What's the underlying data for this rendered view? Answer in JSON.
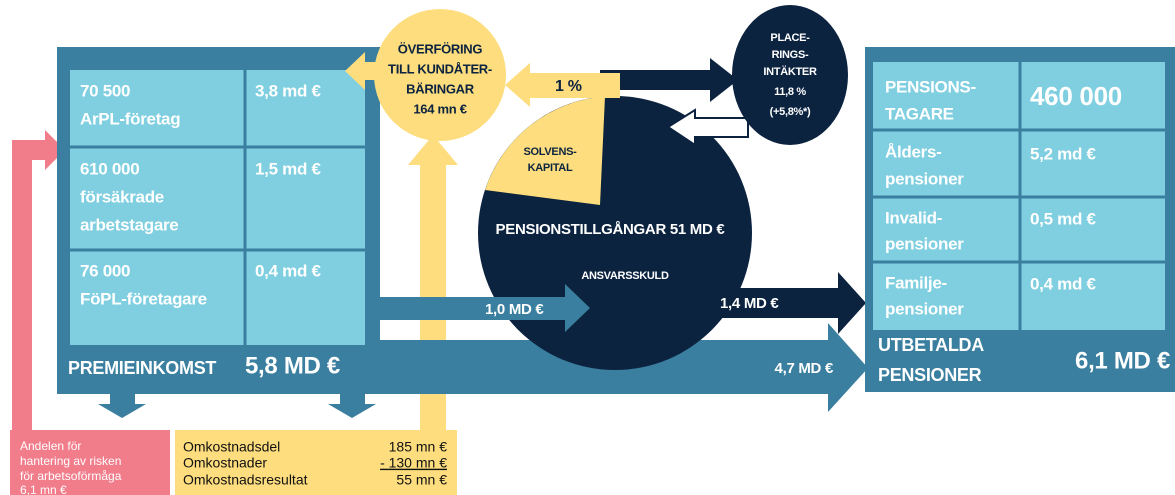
{
  "transfer": {
    "lines": [
      "ÖVERFÖRING",
      "TILL KUNDÅTER-",
      "BÄRINGAR",
      "164 mn €"
    ]
  },
  "investment_income": {
    "lines": [
      "PLACE-",
      "RINGS-",
      "INTÄKTER",
      "11,8 %",
      "(+5,8%*)"
    ]
  },
  "solvency_share": "1 %",
  "circle": {
    "solvency": [
      "SOLVENS-",
      "KAPITAL"
    ],
    "assets": "PENSIONSTILLGÅNGAR 51 MD €",
    "liability": "ANSVARSSKULD"
  },
  "left_table": {
    "rows": [
      {
        "label": [
          "70 500",
          "ArPL-företag"
        ],
        "value": "3,8 md €"
      },
      {
        "label": [
          "610 000",
          "försäkrade",
          "arbetstagare"
        ],
        "value": "1,5 md €"
      },
      {
        "label": [
          "76 000",
          "FöPL-företagare"
        ],
        "value": "0,4 md €"
      }
    ]
  },
  "premium": {
    "label": "PREMIEINKOMST",
    "value": "5,8 MD €"
  },
  "flows": {
    "to_assets": "1,0 MD €",
    "from_assets": "1,4 MD €",
    "direct": "4,7 MD €"
  },
  "right_table": {
    "header": {
      "label": [
        "PENSIONS-",
        "TAGARE"
      ],
      "value": "460 000"
    },
    "rows": [
      {
        "label": [
          "Ålders-",
          "pensioner"
        ],
        "value": "5,2 md €"
      },
      {
        "label": [
          "Invalid-",
          "pensioner"
        ],
        "value": "0,5 md €"
      },
      {
        "label": [
          "Familje-",
          "pensioner"
        ],
        "value": "0,4 md €"
      }
    ]
  },
  "paid": {
    "label": [
      "UTBETALDA",
      "PENSIONER"
    ],
    "value": "6,1 MD €"
  },
  "risk_share": [
    "Andelen för",
    "hantering av risken",
    "för arbetsoförmåga",
    "6,1 mn €"
  ],
  "expenses": {
    "rows": [
      [
        "Omkostnadsdel",
        "185 mn €"
      ],
      [
        "Omkostnader",
        "- 130 mn €"
      ],
      [
        "Omkostnadsresultat",
        "55 mn €"
      ]
    ]
  }
}
